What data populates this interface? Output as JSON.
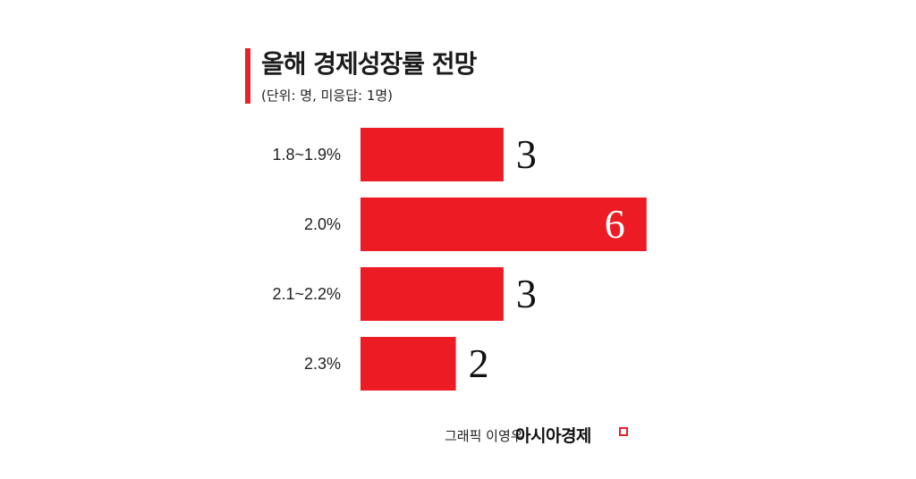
{
  "header": {
    "title": "올해 경제성장률 전망",
    "subtitle": "(단위: 명, 미응답: 1명)"
  },
  "footer": {
    "credit": "그래픽 이영우",
    "brand": "아시아경제"
  },
  "colors": {
    "accent": "#e5232a",
    "bar": "#ed1c24"
  },
  "chart_data": {
    "type": "bar",
    "orientation": "horizontal",
    "title": "올해 경제성장률 전망",
    "subtitle": "(단위: 명, 미응답: 1명)",
    "categories": [
      "1.8~1.9%",
      "2.0%",
      "2.1~2.2%",
      "2.3%"
    ],
    "values": [
      3,
      6,
      3,
      2
    ],
    "xlim": [
      0,
      6
    ],
    "grid": false,
    "legend": "none"
  }
}
